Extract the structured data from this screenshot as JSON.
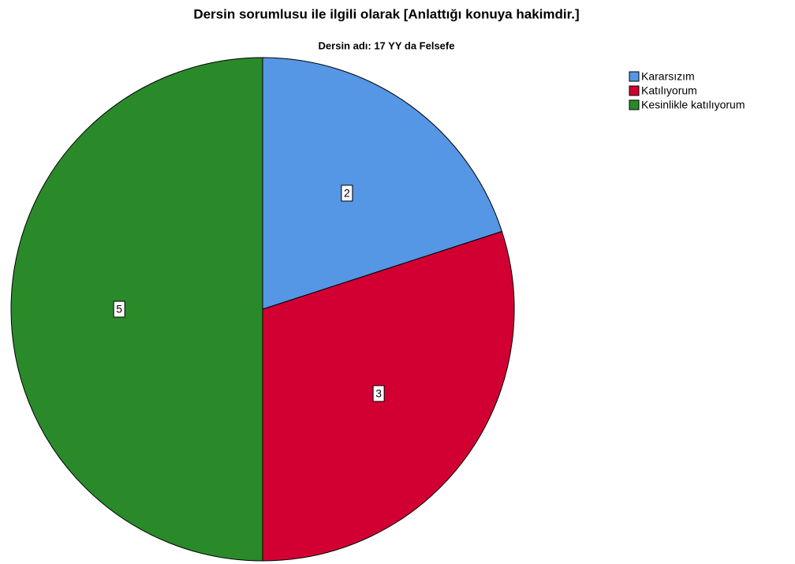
{
  "chart_data": {
    "type": "pie",
    "title": "Dersin sorumlusu ile ilgili olarak  [Anlattığı konuya hakimdir.]",
    "subtitle": "Dersin adı: 17 YY da Felsefe",
    "categories": [
      "Kararsızım",
      "Katılıyorum",
      "Kesinlikle katılıyorum"
    ],
    "values": [
      2,
      3,
      5
    ],
    "colors": [
      "#5596e5",
      "#d20032",
      "#2a8a2a"
    ],
    "legend": "top-right"
  }
}
